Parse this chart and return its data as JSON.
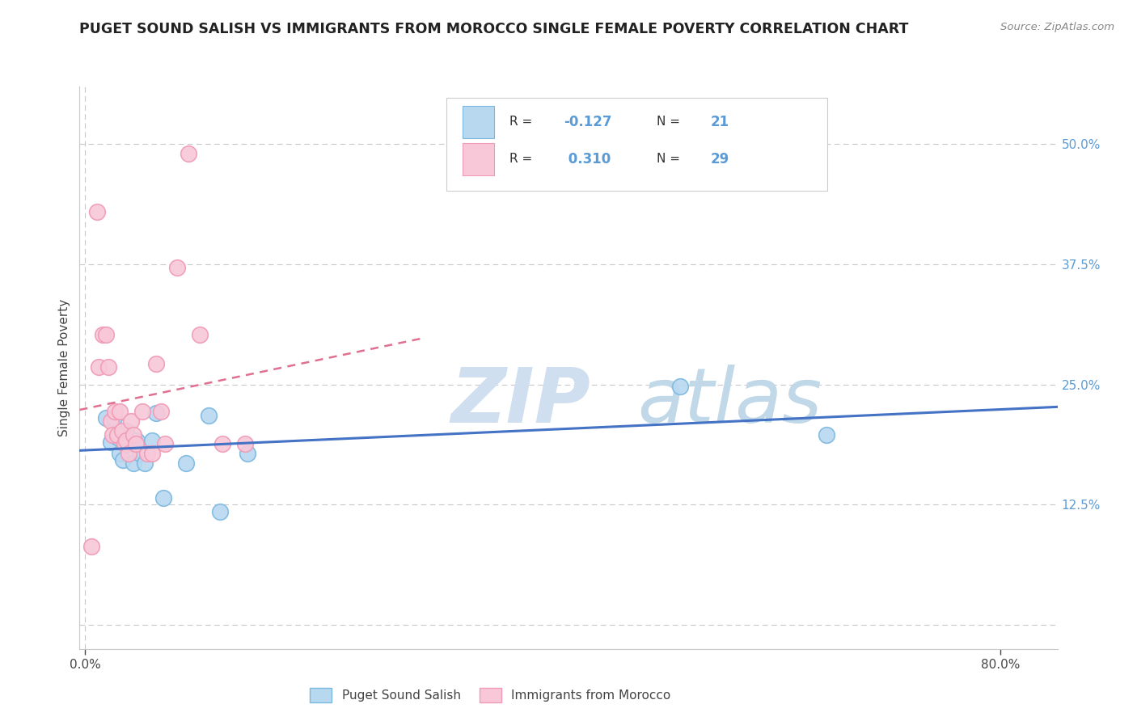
{
  "title": "PUGET SOUND SALISH VS IMMIGRANTS FROM MOROCCO SINGLE FEMALE POVERTY CORRELATION CHART",
  "source": "Source: ZipAtlas.com",
  "ylabel": "Single Female Poverty",
  "xlim": [
    -0.005,
    0.85
  ],
  "ylim": [
    -0.025,
    0.56
  ],
  "legend_label1": "Puget Sound Salish",
  "legend_label2": "Immigrants from Morocco",
  "R1": "-0.127",
  "N1": "21",
  "R2": "0.310",
  "N2": "29",
  "color1_edge": "#7ab8e0",
  "color2_edge": "#f09ab5",
  "color1_fill": "#b8d8f0",
  "color2_fill": "#f8c8d8",
  "line1_color": "#4472c4",
  "line2_color": "#e07090",
  "watermark_zip": "ZIP",
  "watermark_atlas": "atlas",
  "background_color": "#ffffff",
  "grid_color": "#c8c8c8",
  "right_tick_color": "#5b9bd5",
  "scatter1_x": [
    0.018,
    0.022,
    0.025,
    0.028,
    0.03,
    0.033,
    0.036,
    0.038,
    0.042,
    0.045,
    0.048,
    0.052,
    0.058,
    0.062,
    0.068,
    0.088,
    0.108,
    0.118,
    0.142,
    0.52,
    0.648
  ],
  "scatter1_y": [
    0.215,
    0.19,
    0.215,
    0.195,
    0.178,
    0.172,
    0.202,
    0.188,
    0.168,
    0.192,
    0.178,
    0.168,
    0.192,
    0.22,
    0.132,
    0.168,
    0.218,
    0.118,
    0.178,
    0.248,
    0.198
  ],
  "scatter2_x": [
    0.005,
    0.01,
    0.012,
    0.015,
    0.018,
    0.02,
    0.022,
    0.024,
    0.026,
    0.028,
    0.03,
    0.032,
    0.034,
    0.036,
    0.038,
    0.04,
    0.042,
    0.044,
    0.05,
    0.054,
    0.058,
    0.062,
    0.066,
    0.07,
    0.08,
    0.09,
    0.1,
    0.12,
    0.14
  ],
  "scatter2_y": [
    0.082,
    0.43,
    0.268,
    0.302,
    0.302,
    0.268,
    0.212,
    0.198,
    0.222,
    0.198,
    0.222,
    0.202,
    0.188,
    0.192,
    0.178,
    0.212,
    0.198,
    0.188,
    0.222,
    0.178,
    0.178,
    0.272,
    0.222,
    0.188,
    0.372,
    0.49,
    0.302,
    0.188,
    0.188
  ]
}
